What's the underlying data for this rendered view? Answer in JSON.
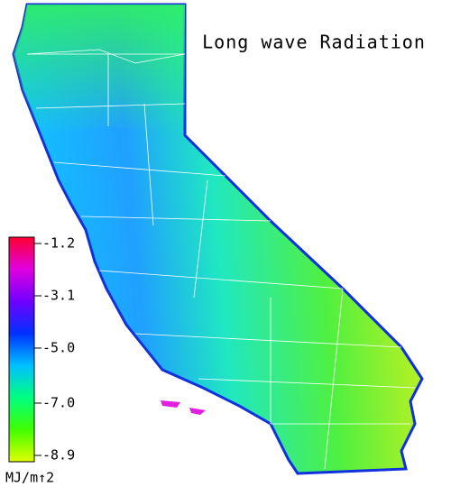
{
  "title": "Long wave Radiation",
  "colorbar": {
    "lim": [
      -1.2,
      -8.9
    ],
    "ticks": [
      -1.2,
      -3.1,
      {
        "value": -5,
        "label": "-5.0"
      },
      {
        "value": -7,
        "label": "-7.0"
      },
      -8.9
    ],
    "colors": [
      "#ff0030",
      "#e000e0",
      "#7000ff",
      "#0030ff",
      "#00c0ff",
      "#00ff80",
      "#40ff00",
      "#e0ff00"
    ],
    "unit": "MJ/m↑2"
  }
}
